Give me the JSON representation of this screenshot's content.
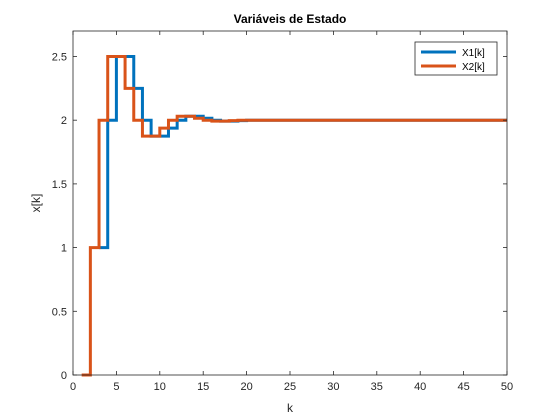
{
  "chart_data": {
    "type": "line",
    "step": "stairs",
    "title": "Variáveis de Estado",
    "xlabel": "k",
    "ylabel": "x[k]",
    "xlim": [
      0,
      50
    ],
    "ylim": [
      0,
      2.7
    ],
    "xticks": [
      0,
      5,
      10,
      15,
      20,
      25,
      30,
      35,
      40,
      45,
      50
    ],
    "xtick_labels": [
      "0",
      "5",
      "10",
      "15",
      "20",
      "25",
      "30",
      "35",
      "40",
      "45",
      "50"
    ],
    "yticks": [
      0,
      0.5,
      1,
      1.5,
      2,
      2.5
    ],
    "ytick_labels": [
      "0",
      "0.5",
      "1",
      "1.5",
      "2",
      "2.5"
    ],
    "grid": false,
    "legend_position": "top-right",
    "series": [
      {
        "name": "X1[k]",
        "color": "#0072BD",
        "x": [
          3,
          4,
          5,
          6,
          7,
          8,
          9,
          10,
          11,
          12,
          13,
          14,
          15,
          16,
          17,
          18,
          19,
          20,
          50
        ],
        "y": [
          1,
          2,
          2.5,
          2.5,
          2.25,
          2,
          1.875,
          1.875,
          1.9375,
          2,
          2.03125,
          2.03125,
          2.015625,
          2,
          1.9921875,
          1.9921875,
          1.99609375,
          2,
          2
        ]
      },
      {
        "name": "X2[k]",
        "color": "#D95319",
        "x": [
          1,
          2,
          3,
          4,
          5,
          6,
          7,
          8,
          9,
          10,
          11,
          12,
          13,
          14,
          15,
          16,
          17,
          18,
          19,
          50
        ],
        "y": [
          0,
          1,
          2,
          2.5,
          2.5,
          2.25,
          2,
          1.875,
          1.875,
          1.9375,
          2,
          2.03125,
          2.03125,
          2.015625,
          2,
          1.9921875,
          1.9921875,
          1.99609375,
          2,
          2
        ]
      }
    ]
  }
}
